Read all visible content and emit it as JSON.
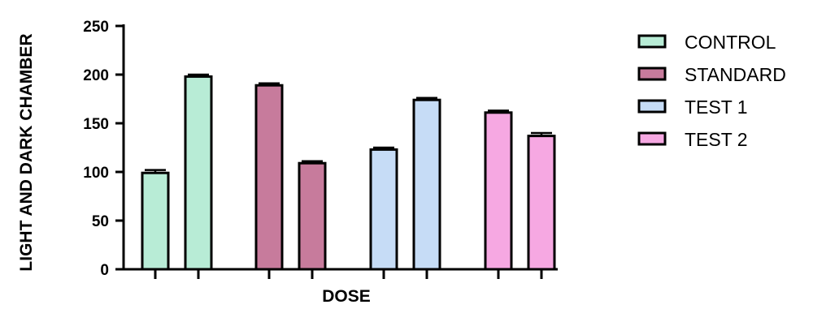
{
  "chart_data": {
    "type": "bar",
    "title": "",
    "xlabel": "DOSE",
    "ylabel": "LIGHT AND DARK CHAMBER",
    "ylim": [
      0,
      250
    ],
    "yticks": [
      0,
      50,
      100,
      150,
      200,
      250
    ],
    "grid": false,
    "legend_position": "right",
    "series": [
      {
        "name": "CONTROL",
        "color": "#b8ecd6",
        "values": [
          99,
          198
        ],
        "errors": [
          3,
          2
        ]
      },
      {
        "name": "STANDARD",
        "color": "#c77b9c",
        "values": [
          189,
          109
        ],
        "errors": [
          2,
          2
        ]
      },
      {
        "name": "TEST 1",
        "color": "#c6dcf6",
        "values": [
          123,
          174
        ],
        "errors": [
          2,
          2
        ]
      },
      {
        "name": "TEST 2",
        "color": "#f6a8e2",
        "values": [
          161,
          137
        ],
        "errors": [
          2,
          3
        ]
      }
    ]
  }
}
